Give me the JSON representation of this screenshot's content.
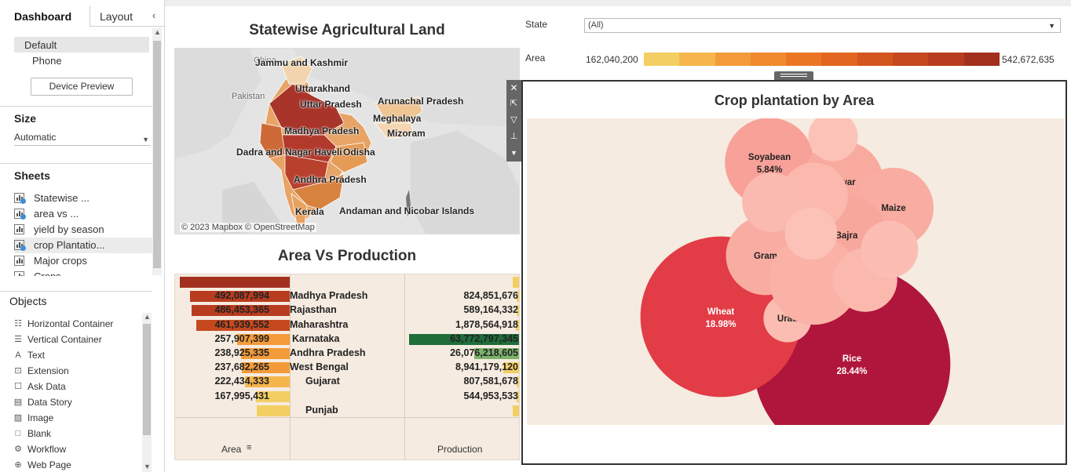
{
  "left_pane": {
    "tabs": [
      {
        "label": "Dashboard"
      },
      {
        "label": "Layout"
      }
    ],
    "devices": [
      {
        "label": "Default"
      },
      {
        "label": "Phone"
      }
    ],
    "device_preview_label": "Device Preview",
    "size_title": "Size",
    "size_value": "Automatic",
    "sheets_title": "Sheets",
    "sheets": [
      {
        "label": "Statewise ...",
        "checked": true
      },
      {
        "label": "area vs ...",
        "checked": true
      },
      {
        "label": "yield by season",
        "checked": false
      },
      {
        "label": "crop  Plantatio...",
        "checked": true
      },
      {
        "label": "Major crops",
        "checked": false
      },
      {
        "label": "Crops",
        "checked": false
      }
    ],
    "objects_title": "Objects",
    "objects": [
      {
        "label": "Horizontal Container",
        "icon": "horizontal-container-icon"
      },
      {
        "label": "Vertical Container",
        "icon": "vertical-container-icon"
      },
      {
        "label": "Text",
        "icon": "text-icon"
      },
      {
        "label": "Extension",
        "icon": "extension-icon"
      },
      {
        "label": "Ask Data",
        "icon": "ask-data-icon"
      },
      {
        "label": "Data Story",
        "icon": "data-story-icon"
      },
      {
        "label": "Image",
        "icon": "image-icon"
      },
      {
        "label": "Blank",
        "icon": "blank-icon"
      },
      {
        "label": "Workflow",
        "icon": "workflow-icon"
      },
      {
        "label": "Web Page",
        "icon": "web-page-icon"
      }
    ]
  },
  "map": {
    "title": "Statewise Agricultural Land",
    "labels": [
      "Jammu and Kashmir",
      "Uttarakhand",
      "Uttar Pradesh",
      "Arunachal Pradesh",
      "Meghalaya",
      "Madhya Pradesh",
      "Mizoram",
      "Dadra and Nagar Haveli",
      "Odisha",
      "Andhra Pradesh",
      "Kerala",
      "Andaman and Nicobar Islands"
    ],
    "background_labels": [
      "Pakistan",
      "China"
    ],
    "credit": "© 2023 Mapbox © OpenStreetMap"
  },
  "filters": {
    "state_label": "State",
    "state_value": "(All)",
    "area_label": "Area",
    "area_min": "162,040,200",
    "area_max": "542,672,635",
    "legend_colors": [
      "#f3cf63",
      "#f6b54c",
      "#f39b3a",
      "#ef8a2e",
      "#ea7624",
      "#e2661f",
      "#d4561f",
      "#c6481f",
      "#b83c1f",
      "#a3301f"
    ]
  },
  "chart_data": [
    {
      "type": "bar",
      "title": "Area Vs Production",
      "categories": [
        "",
        "Madhya Pradesh",
        "Rajasthan",
        "Maharashtra",
        "Karnataka",
        "Andhra Pradesh",
        "West Bengal",
        "Gujarat",
        "",
        "Punjab"
      ],
      "series": [
        {
          "name": "Area",
          "values": [
            542672635,
            492087994,
            486453365,
            461939552,
            257907399,
            238925335,
            237682265,
            222434333,
            167995431,
            162040200
          ],
          "labels": [
            "",
            "492,087,994",
            "486,453,365",
            "461,939,552",
            "257,907,399",
            "238,925,335",
            "237,682,265",
            "222,434,333",
            "167,995,431",
            ""
          ]
        },
        {
          "name": "Production",
          "values": [
            null,
            824851676,
            589164332,
            1878564918,
            63772797345,
            26076218605,
            8941179120,
            807581678,
            544953533,
            null
          ],
          "labels": [
            "",
            "824,851,676",
            "589,164,332",
            "1,878,564,918",
            "63,772,797,345",
            "26,076,218,605",
            "8,941,179,120",
            "807,581,678",
            "544,953,533",
            ""
          ]
        }
      ],
      "xlabel": "",
      "column_headers": [
        "Area",
        "Production"
      ]
    },
    {
      "type": "bubble",
      "title": "Crop plantation by Area",
      "bubbles": [
        {
          "label": "Rice",
          "pct": "28.44%",
          "value": 28.44,
          "color": "#b0163b",
          "text_color": "#ffffff"
        },
        {
          "label": "Wheat",
          "pct": "18.98%",
          "value": 18.98,
          "color": "#e23c47",
          "text_color": "#ffffff"
        },
        {
          "label": "Soyabean",
          "pct": "5.84%",
          "value": 5.84,
          "color": "#f7a199",
          "text_color": "#222222"
        },
        {
          "label": "Jowar",
          "pct": "",
          "value": 4.9,
          "color": "#f9aa9f",
          "text_color": "#222222"
        },
        {
          "label": "Maize",
          "pct": "",
          "value": 4.7,
          "color": "#f9aca1",
          "text_color": "#222222"
        },
        {
          "label": "Bajra",
          "pct": "",
          "value": 4.8,
          "color": "#f8a79c",
          "text_color": "#222222"
        },
        {
          "label": "Gram",
          "pct": "",
          "value": 4.6,
          "color": "#f9ada2",
          "text_color": "#222222"
        },
        {
          "label": "Urad",
          "pct": "",
          "value": 1.7,
          "color": "#fbbcb1",
          "text_color": "#222222"
        },
        {
          "label": "",
          "pct": "",
          "value": 5.9,
          "color": "#fab1a6",
          "text_color": "#222222"
        },
        {
          "label": "",
          "pct": "",
          "value": 3.3,
          "color": "#fbb9ae",
          "text_color": "#222222"
        },
        {
          "label": "",
          "pct": "",
          "value": 2.6,
          "color": "#fbbab0",
          "text_color": "#222222"
        },
        {
          "label": "",
          "pct": "",
          "value": 3.0,
          "color": "#fbb9ae",
          "text_color": "#222222"
        },
        {
          "label": "",
          "pct": "",
          "value": 2.0,
          "color": "#fcc2b8",
          "text_color": "#222222"
        },
        {
          "label": "",
          "pct": "",
          "value": 1.8,
          "color": "#fcc2b8",
          "text_color": "#222222"
        },
        {
          "label": "",
          "pct": "",
          "value": 2.4,
          "color": "#fcbeb4",
          "text_color": "#222222"
        }
      ]
    }
  ]
}
